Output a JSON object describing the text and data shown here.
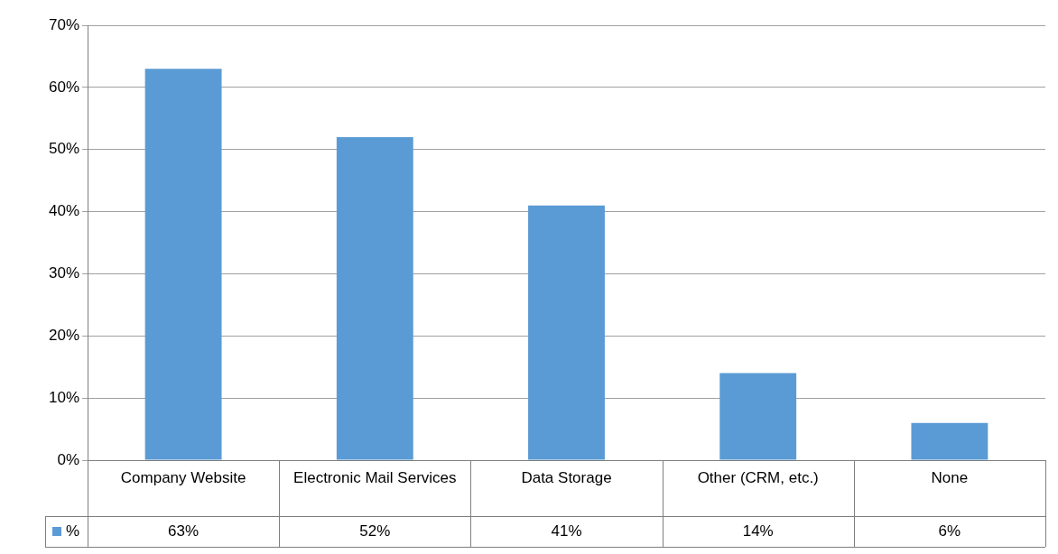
{
  "chart_data": {
    "type": "bar",
    "categories": [
      "Company Website",
      "Electronic Mail Services",
      "Data Storage",
      "Other (CRM, etc.)",
      "None"
    ],
    "series": [
      {
        "name": "%",
        "color": "#5b9bd5",
        "values": [
          63,
          52,
          41,
          14,
          6
        ],
        "value_labels": [
          "63%",
          "52%",
          "41%",
          "14%",
          "6%"
        ]
      }
    ],
    "ylim": [
      0,
      70
    ],
    "yticks": [
      {
        "value": 0,
        "label": "0%"
      },
      {
        "value": 10,
        "label": "10%"
      },
      {
        "value": 20,
        "label": "20%"
      },
      {
        "value": 30,
        "label": "30%"
      },
      {
        "value": 40,
        "label": "40%"
      },
      {
        "value": 50,
        "label": "50%"
      },
      {
        "value": 60,
        "label": "60%"
      },
      {
        "value": 70,
        "label": "70%"
      }
    ],
    "grid": "y"
  }
}
